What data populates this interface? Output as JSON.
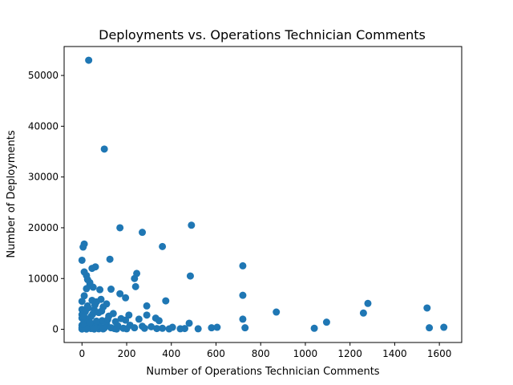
{
  "chart_data": {
    "type": "scatter",
    "title": "Deployments vs. Operations Technician Comments",
    "xlabel": "Number of Operations Technician Comments",
    "ylabel": "Number of Deployments",
    "xlim": [
      -80,
      1700
    ],
    "ylim": [
      -2600,
      55700
    ],
    "xticks": [
      0,
      200,
      400,
      600,
      800,
      1000,
      1200,
      1400,
      1600
    ],
    "yticks": [
      0,
      10000,
      20000,
      30000,
      40000,
      50000
    ],
    "grid": false,
    "marker_color": "#1f77b4",
    "points": [
      [
        30,
        53000
      ],
      [
        100,
        35500
      ],
      [
        490,
        20500
      ],
      [
        170,
        20000
      ],
      [
        270,
        19100
      ],
      [
        10,
        16800
      ],
      [
        5,
        16200
      ],
      [
        360,
        16300
      ],
      [
        0,
        13600
      ],
      [
        125,
        13800
      ],
      [
        60,
        12300
      ],
      [
        45,
        12000
      ],
      [
        720,
        12500
      ],
      [
        10,
        11300
      ],
      [
        20,
        10600
      ],
      [
        245,
        11000
      ],
      [
        235,
        10000
      ],
      [
        485,
        10500
      ],
      [
        25,
        9800
      ],
      [
        35,
        9200
      ],
      [
        35,
        8600
      ],
      [
        50,
        8300
      ],
      [
        20,
        8000
      ],
      [
        80,
        7800
      ],
      [
        130,
        7900
      ],
      [
        240,
        8400
      ],
      [
        10,
        6600
      ],
      [
        170,
        7000
      ],
      [
        720,
        6700
      ],
      [
        195,
        6200
      ],
      [
        45,
        5700
      ],
      [
        85,
        5900
      ],
      [
        65,
        5400
      ],
      [
        110,
        5000
      ],
      [
        0,
        5500
      ],
      [
        25,
        4600
      ],
      [
        95,
        4400
      ],
      [
        290,
        4600
      ],
      [
        375,
        5600
      ],
      [
        1280,
        5100
      ],
      [
        1545,
        4200
      ],
      [
        0,
        3900
      ],
      [
        15,
        3500
      ],
      [
        55,
        3800
      ],
      [
        75,
        3300
      ],
      [
        140,
        3100
      ],
      [
        870,
        3400
      ],
      [
        1260,
        3200
      ],
      [
        210,
        2800
      ],
      [
        0,
        2900
      ],
      [
        40,
        2500
      ],
      [
        120,
        2600
      ],
      [
        290,
        2800
      ],
      [
        330,
        2200
      ],
      [
        720,
        2000
      ],
      [
        175,
        2100
      ],
      [
        0,
        2200
      ],
      [
        25,
        1900
      ],
      [
        90,
        1700
      ],
      [
        150,
        1500
      ],
      [
        195,
        1800
      ],
      [
        255,
        2000
      ],
      [
        345,
        1700
      ],
      [
        480,
        1200
      ],
      [
        1095,
        1400
      ],
      [
        10,
        1400
      ],
      [
        45,
        1100
      ],
      [
        70,
        900
      ],
      [
        110,
        1000
      ],
      [
        160,
        700
      ],
      [
        215,
        800
      ],
      [
        270,
        600
      ],
      [
        310,
        500
      ],
      [
        405,
        400
      ],
      [
        580,
        300
      ],
      [
        605,
        400
      ],
      [
        1040,
        200
      ],
      [
        1555,
        300
      ],
      [
        1620,
        400
      ],
      [
        0,
        800
      ],
      [
        30,
        600
      ],
      [
        60,
        500
      ],
      [
        85,
        400
      ],
      [
        130,
        300
      ],
      [
        185,
        200
      ],
      [
        235,
        300
      ],
      [
        360,
        200
      ],
      [
        440,
        100
      ],
      [
        520,
        100
      ],
      [
        730,
        300
      ],
      [
        0,
        300
      ],
      [
        15,
        200
      ],
      [
        40,
        150
      ],
      [
        75,
        100
      ],
      [
        100,
        250
      ],
      [
        145,
        150
      ],
      [
        200,
        100
      ],
      [
        280,
        200
      ],
      [
        335,
        150
      ],
      [
        0,
        50
      ],
      [
        20,
        50
      ],
      [
        55,
        50
      ],
      [
        95,
        80
      ],
      [
        155,
        60
      ],
      [
        390,
        80
      ],
      [
        460,
        150
      ],
      [
        5,
        1000
      ],
      [
        35,
        1300
      ],
      [
        65,
        1600
      ],
      [
        115,
        1900
      ],
      [
        8,
        2600
      ],
      [
        48,
        3000
      ],
      [
        88,
        3600
      ],
      [
        28,
        4200
      ],
      [
        58,
        4800
      ]
    ]
  }
}
